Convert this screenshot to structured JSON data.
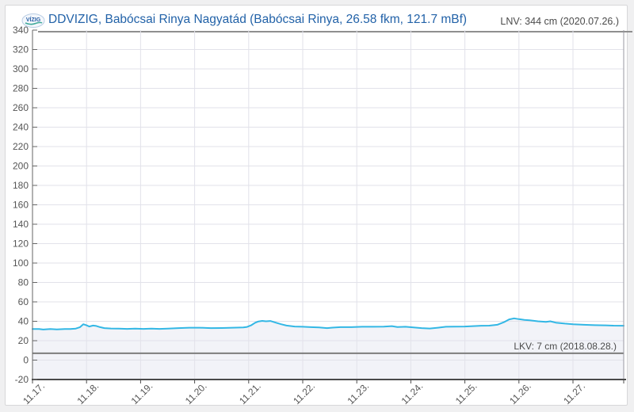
{
  "header": {
    "station_title": "DDVIZIG, Babócsai Rinya Nagyatád (Babócsai Rinya, 26.58 fkm, 121.7 mBf)",
    "lnv_label": "LNV: 344 cm (2020.07.26.)",
    "logo_text": "VÍZIG"
  },
  "colors": {
    "page_bg": "#f0f0f1",
    "card_bg": "#ffffff",
    "card_border": "#d7d7d9",
    "title_blue": "#2262a8",
    "header_text": "#4b4b4b",
    "separator": "#8f8f8f",
    "grid": "#e2e2ea",
    "axis_left": "#666666",
    "axis_bottom": "#4a4a4a",
    "axis_right": "#9a9aa2",
    "tick_label": "#555555",
    "series_line": "#33b7e5",
    "series_fill": "#f2f3f8",
    "reference_line": "#7d7d7d"
  },
  "chart_data": {
    "type": "line",
    "title": "DDVIZIG, Babócsai Rinya Nagyatád (Babócsai Rinya, 26.58 fkm, 121.7 mBf)",
    "ylabel": "cm",
    "ylim": [
      -20,
      340
    ],
    "y_ticks": [
      340,
      320,
      300,
      280,
      260,
      240,
      220,
      200,
      180,
      160,
      140,
      120,
      100,
      80,
      60,
      40,
      20,
      0,
      -20
    ],
    "x_labels": [
      "11.17.",
      "11.18.",
      "11.19.",
      "11.20.",
      "11.21.",
      "11.22.",
      "11.23.",
      "11.24.",
      "11.25.",
      "11.26.",
      "11.27."
    ],
    "x_range_days": [
      0,
      10.94
    ],
    "grid": true,
    "legend": "none",
    "reference_line": {
      "label": "LKV: 7 cm (2018.08.28.)",
      "value": 7
    },
    "max_recorded": {
      "label": "LNV: 344 cm (2020.07.26.)",
      "value": 344
    },
    "series": [
      {
        "points": [
          [
            0,
            32
          ],
          [
            0.12,
            32
          ],
          [
            0.2,
            31.5
          ],
          [
            0.33,
            32
          ],
          [
            0.45,
            31.7
          ],
          [
            0.6,
            32
          ],
          [
            0.7,
            32
          ],
          [
            0.8,
            32.5
          ],
          [
            0.88,
            34
          ],
          [
            0.94,
            37
          ],
          [
            1.0,
            35.8
          ],
          [
            1.05,
            34.6
          ],
          [
            1.12,
            35.6
          ],
          [
            1.18,
            35.2
          ],
          [
            1.25,
            34
          ],
          [
            1.33,
            33
          ],
          [
            1.45,
            32.6
          ],
          [
            1.6,
            32.4
          ],
          [
            1.75,
            32.2
          ],
          [
            1.9,
            32.4
          ],
          [
            2.05,
            32.2
          ],
          [
            2.2,
            32.4
          ],
          [
            2.35,
            32.2
          ],
          [
            2.5,
            32.5
          ],
          [
            2.7,
            33
          ],
          [
            2.9,
            33.4
          ],
          [
            3.1,
            33.4
          ],
          [
            3.3,
            33
          ],
          [
            3.5,
            33.1
          ],
          [
            3.7,
            33.4
          ],
          [
            3.9,
            33.6
          ],
          [
            3.97,
            34.2
          ],
          [
            4.05,
            36
          ],
          [
            4.12,
            38.5
          ],
          [
            4.18,
            39.8
          ],
          [
            4.25,
            40.4
          ],
          [
            4.32,
            40
          ],
          [
            4.4,
            40.3
          ],
          [
            4.5,
            38.6
          ],
          [
            4.6,
            37
          ],
          [
            4.7,
            35.6
          ],
          [
            4.85,
            34.6
          ],
          [
            5.0,
            34.4
          ],
          [
            5.15,
            34
          ],
          [
            5.3,
            33.6
          ],
          [
            5.45,
            33
          ],
          [
            5.55,
            33.5
          ],
          [
            5.7,
            34
          ],
          [
            5.9,
            34
          ],
          [
            6.1,
            34.4
          ],
          [
            6.3,
            34.4
          ],
          [
            6.5,
            34.5
          ],
          [
            6.65,
            35
          ],
          [
            6.75,
            34.1
          ],
          [
            6.9,
            34.4
          ],
          [
            7.05,
            33.6
          ],
          [
            7.2,
            33
          ],
          [
            7.35,
            32.6
          ],
          [
            7.5,
            33.4
          ],
          [
            7.65,
            34.4
          ],
          [
            7.8,
            34.5
          ],
          [
            8.0,
            34.6
          ],
          [
            8.15,
            35
          ],
          [
            8.3,
            35.4
          ],
          [
            8.45,
            35.5
          ],
          [
            8.6,
            36.4
          ],
          [
            8.72,
            39
          ],
          [
            8.82,
            42
          ],
          [
            8.91,
            43
          ],
          [
            9.0,
            42.2
          ],
          [
            9.1,
            41.5
          ],
          [
            9.2,
            41
          ],
          [
            9.35,
            40
          ],
          [
            9.5,
            39.4
          ],
          [
            9.58,
            40
          ],
          [
            9.68,
            38.6
          ],
          [
            9.85,
            37.6
          ],
          [
            10.0,
            37
          ],
          [
            10.2,
            36.4
          ],
          [
            10.4,
            36
          ],
          [
            10.6,
            35.8
          ],
          [
            10.75,
            35.5
          ],
          [
            10.94,
            35.4
          ]
        ]
      }
    ]
  }
}
